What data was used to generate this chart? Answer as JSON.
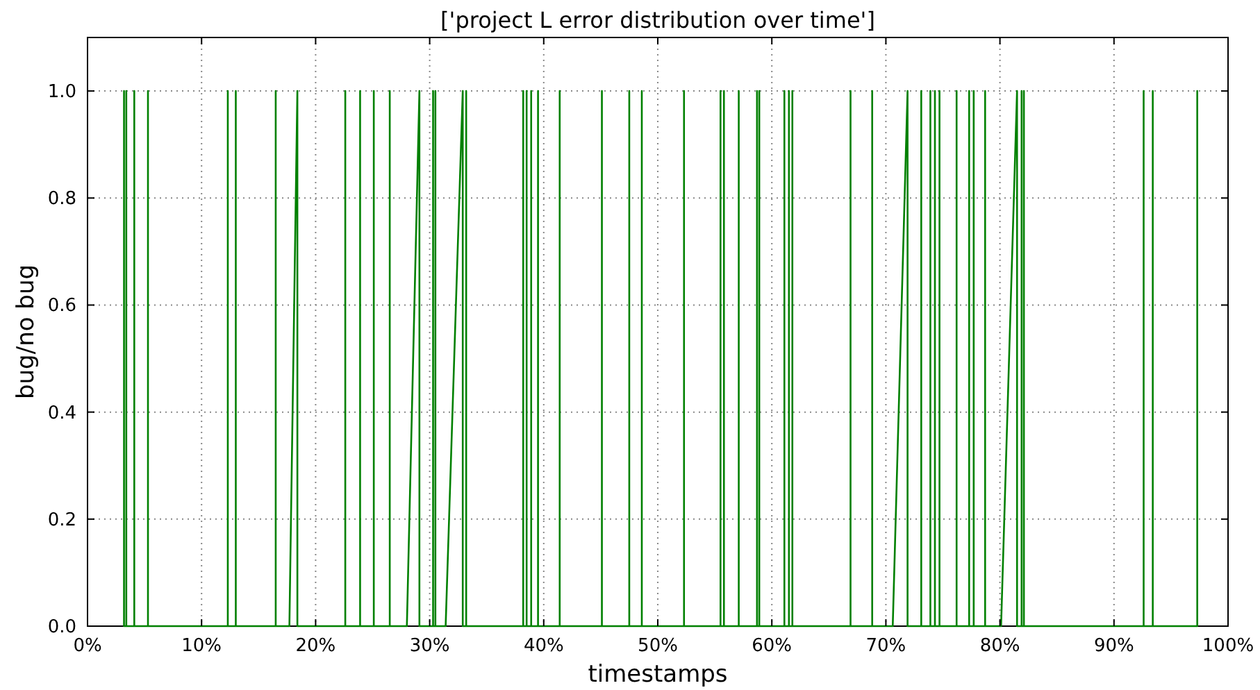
{
  "chart_data": {
    "type": "line",
    "title": "['project L error distribution over time']",
    "xlabel": "timestamps",
    "ylabel": "bug/no bug",
    "xlim": [
      0,
      100
    ],
    "xticks": [
      {
        "value": 0,
        "label": "0%"
      },
      {
        "value": 10,
        "label": "10%"
      },
      {
        "value": 20,
        "label": "20%"
      },
      {
        "value": 30,
        "label": "30%"
      },
      {
        "value": 40,
        "label": "40%"
      },
      {
        "value": 50,
        "label": "50%"
      },
      {
        "value": 60,
        "label": "60%"
      },
      {
        "value": 70,
        "label": "70%"
      },
      {
        "value": 80,
        "label": "80%"
      },
      {
        "value": 90,
        "label": "90%"
      },
      {
        "value": 100,
        "label": "100%"
      }
    ],
    "ylim": [
      0,
      1.1
    ],
    "yticks": [
      {
        "value": 0,
        "label": "0.0"
      },
      {
        "value": 0.2,
        "label": "0.2"
      },
      {
        "value": 0.4,
        "label": "0.4"
      },
      {
        "value": 0.6,
        "label": "0.6"
      },
      {
        "value": 0.8,
        "label": "0.8"
      },
      {
        "value": 1,
        "label": "1.0"
      }
    ],
    "grid": true,
    "line_style": "solid",
    "series": [
      {
        "color": "#008000",
        "x": [
          3.2,
          3.2,
          3.2,
          3.4,
          3.4,
          3.4,
          4.1,
          4.1,
          4.1,
          5.3,
          5.3,
          5.3,
          12.3,
          12.3,
          12.3,
          13.0,
          13.0,
          13.0,
          16.5,
          16.5,
          16.5,
          17.7,
          18.4,
          18.4,
          22.6,
          22.6,
          22.6,
          23.9,
          23.9,
          23.9,
          25.1,
          25.1,
          25.1,
          26.5,
          26.5,
          26.5,
          28.0,
          29.1,
          29.1,
          30.3,
          30.3,
          30.3,
          30.5,
          30.5,
          30.5,
          31.4,
          32.9,
          32.9,
          33.2,
          33.2,
          33.2,
          38.2,
          38.2,
          38.2,
          38.5,
          38.5,
          38.5,
          38.9,
          38.9,
          38.9,
          39.5,
          39.5,
          39.5,
          41.4,
          41.4,
          41.4,
          45.1,
          45.1,
          45.1,
          47.5,
          47.5,
          47.5,
          48.6,
          48.6,
          48.6,
          52.3,
          52.3,
          52.3,
          55.5,
          55.5,
          55.5,
          55.8,
          55.8,
          55.8,
          57.1,
          57.1,
          57.1,
          58.7,
          58.7,
          58.7,
          58.9,
          58.9,
          58.9,
          61.1,
          61.1,
          61.1,
          61.5,
          61.5,
          61.5,
          61.8,
          61.8,
          61.8,
          66.9,
          66.9,
          66.9,
          68.8,
          68.8,
          68.8,
          70.6,
          71.9,
          71.9,
          73.1,
          73.1,
          73.1,
          73.9,
          73.9,
          73.9,
          74.3,
          74.3,
          74.3,
          74.7,
          74.7,
          74.7,
          76.2,
          76.2,
          76.2,
          77.3,
          77.3,
          77.3,
          77.7,
          77.7,
          77.7,
          78.7,
          78.7,
          78.7,
          80.1,
          81.5,
          81.5,
          81.9,
          81.9,
          81.9,
          82.1,
          82.1,
          82.1,
          92.6,
          92.6,
          92.6,
          93.4,
          93.4,
          93.4,
          97.3,
          97.3,
          97.3
        ],
        "values": [
          0,
          1,
          0,
          0,
          1,
          0,
          0,
          1,
          0,
          0,
          1,
          0,
          0,
          1,
          0,
          0,
          1,
          0,
          0,
          1,
          0,
          0,
          1,
          0,
          0,
          1,
          0,
          0,
          1,
          0,
          0,
          1,
          0,
          0,
          1,
          0,
          0,
          1,
          0,
          0,
          1,
          0,
          0,
          1,
          0,
          0,
          1,
          0,
          0,
          1,
          0,
          0,
          1,
          0,
          0,
          1,
          0,
          0,
          1,
          0,
          0,
          1,
          0,
          0,
          1,
          0,
          0,
          1,
          0,
          0,
          1,
          0,
          0,
          1,
          0,
          0,
          1,
          0,
          0,
          1,
          0,
          0,
          1,
          0,
          0,
          1,
          0,
          0,
          1,
          0,
          0,
          1,
          0,
          0,
          1,
          0,
          0,
          1,
          0,
          0,
          1,
          0,
          0,
          1,
          0,
          0,
          1,
          0,
          0,
          1,
          0,
          0,
          1,
          0,
          0,
          1,
          0,
          0,
          1,
          0,
          0,
          1,
          0,
          0,
          1,
          0,
          0,
          1,
          0,
          0,
          1,
          0,
          0,
          1,
          0,
          0,
          1,
          0,
          0,
          1,
          0,
          0,
          1,
          0,
          0,
          1,
          0,
          0,
          1,
          0,
          0,
          1,
          0
        ]
      }
    ]
  }
}
